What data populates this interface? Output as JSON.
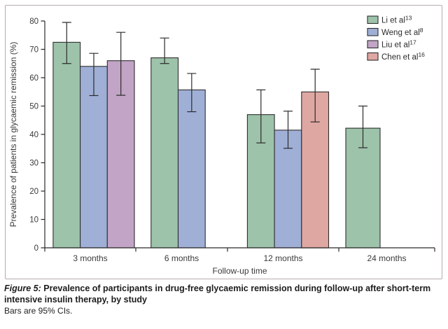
{
  "figure": {
    "caption_prefix": "Figure 5:",
    "caption_main_1": "Prevalence of participants in drug-free glycaemic remission during follow-up after short-term",
    "caption_main_2": "intensive insulin therapy, by study",
    "caption_note": "Bars are 95% CIs."
  },
  "chart_data": {
    "type": "bar",
    "title": "",
    "xlabel": "Follow-up time",
    "ylabel": "Prevalence of patients in glycaemic remission (%)",
    "ylim": [
      0,
      80
    ],
    "yticks": [
      0,
      10,
      20,
      30,
      40,
      50,
      60,
      70,
      80
    ],
    "categories": [
      "3 months",
      "6 months",
      "12 months",
      "24 months"
    ],
    "grid": false,
    "legend_position": "top-right",
    "error_bars": "95% CI",
    "axis_color": "#2b2b2b",
    "bar_stroke_color": "#2e2e2e",
    "series": [
      {
        "name": "Li et al",
        "ref": "13",
        "color": "#9dc3aa",
        "values": [
          72.5,
          67.0,
          47.0,
          42.2
        ],
        "ci_low": [
          65.0,
          65.0,
          37.0,
          35.3
        ],
        "ci_high": [
          79.5,
          74.0,
          55.7,
          50.0
        ]
      },
      {
        "name": "Weng et al",
        "ref": "8",
        "color": "#9fafd6",
        "values": [
          64.0,
          55.7,
          41.5,
          null
        ],
        "ci_low": [
          53.7,
          48.0,
          35.1,
          null
        ],
        "ci_high": [
          68.6,
          61.5,
          48.2,
          null
        ]
      },
      {
        "name": "Liu et al",
        "ref": "17",
        "color": "#c2a4c6",
        "values": [
          66.0,
          null,
          null,
          null
        ],
        "ci_low": [
          53.8,
          null,
          null,
          null
        ],
        "ci_high": [
          76.0,
          null,
          null,
          null
        ]
      },
      {
        "name": "Chen et al",
        "ref": "16",
        "color": "#dfa7a2",
        "values": [
          null,
          null,
          55.0,
          null
        ],
        "ci_low": [
          null,
          null,
          44.4,
          null
        ],
        "ci_high": [
          null,
          null,
          63.0,
          null
        ]
      }
    ]
  }
}
